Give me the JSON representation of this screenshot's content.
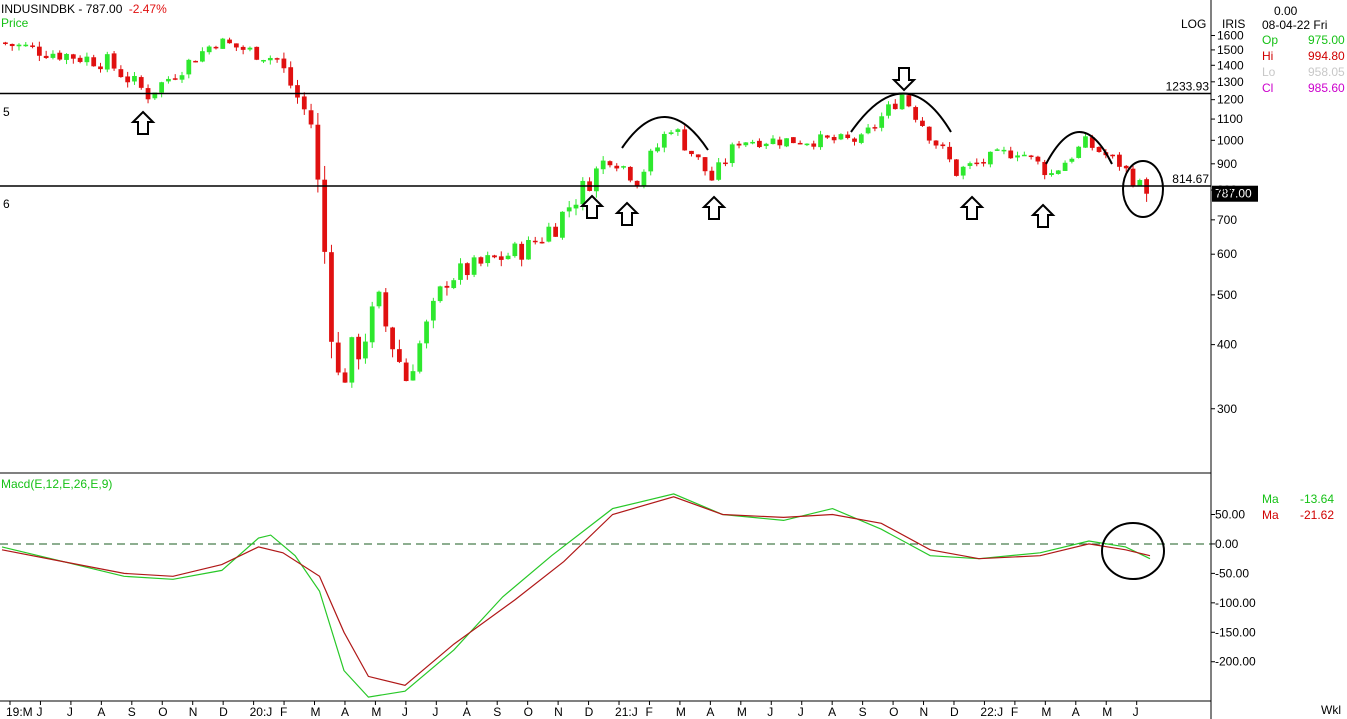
{
  "header": {
    "symbol": "INDUSINDBK -",
    "last_price": "787.00",
    "change": "-2.47%",
    "price_label": "Price",
    "log_label": "LOG",
    "source_label": "IRIS",
    "macd_label": "Macd(E,12,E,26,E,9)",
    "period_label": "Wkl",
    "row5": "5",
    "row6": "6"
  },
  "ohlc_panel": {
    "top_value": "0.00",
    "date": "08-04-22 Fri",
    "rows": [
      {
        "label": "Op",
        "value": "975.00",
        "color": "#16c116"
      },
      {
        "label": "Hi",
        "value": "994.80",
        "color": "#d00000"
      },
      {
        "label": "Lo",
        "value": "958.05",
        "color": "#c8c8c8"
      },
      {
        "label": "Cl",
        "value": "985.60",
        "color": "#cc00cc"
      }
    ]
  },
  "macd_panel": {
    "rows": [
      {
        "label": "Ma",
        "value": "-13.64",
        "color": "#16c116"
      },
      {
        "label": "Ma",
        "value": "-21.62",
        "color": "#d00000"
      }
    ]
  },
  "colors": {
    "up": "#2ee82e",
    "down": "#e01010",
    "macd": "#28c828",
    "signal": "#b01818"
  },
  "chart_data": [
    {
      "type": "candlestick",
      "title": "INDUSINDBK - 787.00 -2.47%",
      "scale": "log",
      "ylim": [
        230,
        1700
      ],
      "y_ticks": [
        1600,
        1500,
        1400,
        1300,
        1200,
        1100,
        1000,
        900,
        800,
        700,
        600,
        500,
        400,
        300
      ],
      "x_tick_labels": [
        "19:M",
        "J",
        "J",
        "A",
        "S",
        "O",
        "N",
        "D",
        "20:J",
        "F",
        "M",
        "A",
        "M",
        "J",
        "J",
        "A",
        "S",
        "O",
        "N",
        "D",
        "21:J",
        "F",
        "M",
        "A",
        "M",
        "J",
        "J",
        "A",
        "S",
        "O",
        "N",
        "D",
        "22:J",
        "F",
        "M",
        "A",
        "M",
        "J"
      ],
      "horizontal_lines": [
        {
          "value": 1233.93,
          "label": "1233.93"
        },
        {
          "value": 814.67,
          "label": "814.67"
        }
      ],
      "last_price_tag": "787.00",
      "annotations": [
        "up arrows at support",
        "down arrows at tops",
        "arcs marking tops",
        "circle around last candles"
      ],
      "segments": [
        {
          "from": "2019-05",
          "to": "2019-09",
          "start": 1550,
          "end": 1420,
          "weeks": 16,
          "vol": 0.04
        },
        {
          "from": "2019-09",
          "to": "2019-10",
          "start": 1420,
          "end": 1230,
          "weeks": 6,
          "vol": 0.04
        },
        {
          "from": "2019-10",
          "to": "2019-12",
          "start": 1230,
          "end": 1560,
          "weeks": 10,
          "vol": 0.035
        },
        {
          "from": "2019-12",
          "to": "2020-02",
          "start": 1560,
          "end": 1440,
          "weeks": 9,
          "vol": 0.035
        },
        {
          "from": "2020-02",
          "to": "2020-03",
          "start": 1440,
          "end": 1080,
          "weeks": 5,
          "vol": 0.05
        },
        {
          "from": "2020-03",
          "to": "2020-04",
          "start": 1080,
          "end": 340,
          "weeks": 4,
          "vol": 0.12
        },
        {
          "from": "2020-04",
          "to": "2020-05",
          "start": 340,
          "end": 470,
          "weeks": 6,
          "vol": 0.1
        },
        {
          "from": "2020-05",
          "to": "2020-06",
          "start": 470,
          "end": 345,
          "weeks": 4,
          "vol": 0.08
        },
        {
          "from": "2020-06",
          "to": "2020-07",
          "start": 345,
          "end": 540,
          "weeks": 6,
          "vol": 0.06
        },
        {
          "from": "2020-07",
          "to": "2020-10",
          "start": 540,
          "end": 620,
          "weeks": 12,
          "vol": 0.05
        },
        {
          "from": "2020-10",
          "to": "2020-11",
          "start": 620,
          "end": 690,
          "weeks": 4,
          "vol": 0.06
        },
        {
          "from": "2020-11",
          "to": "2021-01",
          "start": 690,
          "end": 940,
          "weeks": 8,
          "vol": 0.05
        },
        {
          "from": "2021-01",
          "to": "2021-02",
          "start": 940,
          "end": 840,
          "weeks": 4,
          "vol": 0.04
        },
        {
          "from": "2021-02",
          "to": "2021-03",
          "start": 840,
          "end": 1070,
          "weeks": 5,
          "vol": 0.04
        },
        {
          "from": "2021-03",
          "to": "2021-04",
          "start": 1070,
          "end": 840,
          "weeks": 6,
          "vol": 0.04
        },
        {
          "from": "2021-04",
          "to": "2021-05",
          "start": 840,
          "end": 1000,
          "weeks": 4,
          "vol": 0.035
        },
        {
          "from": "2021-05",
          "to": "2021-09",
          "start": 1000,
          "end": 1000,
          "weeks": 18,
          "vol": 0.03
        },
        {
          "from": "2021-09",
          "to": "2021-10",
          "start": 1000,
          "end": 1230,
          "weeks": 6,
          "vol": 0.035
        },
        {
          "from": "2021-10",
          "to": "2021-12",
          "start": 1230,
          "end": 870,
          "weeks": 8,
          "vol": 0.04
        },
        {
          "from": "2021-12",
          "to": "2022-02",
          "start": 870,
          "end": 960,
          "weeks": 9,
          "vol": 0.035
        },
        {
          "from": "2022-02",
          "to": "2022-03",
          "start": 960,
          "end": 860,
          "weeks": 5,
          "vol": 0.035
        },
        {
          "from": "2022-03",
          "to": "2022-04",
          "start": 860,
          "end": 990,
          "weeks": 5,
          "vol": 0.03
        },
        {
          "from": "2022-04",
          "to": "2022-05",
          "start": 990,
          "end": 900,
          "weeks": 5,
          "vol": 0.03
        },
        {
          "from": "2022-05",
          "to": "2022-06",
          "start": 900,
          "end": 790,
          "weeks": 4,
          "vol": 0.035
        }
      ]
    },
    {
      "type": "line",
      "title": "Macd(E,12,E,26,E,9)",
      "ylim": [
        -265,
        95
      ],
      "y_ticks": [
        50,
        0,
        -50,
        -100,
        -150,
        -200
      ],
      "y_tick_labels": [
        "50.00",
        "0.00",
        "-50.00",
        "-100.00",
        "-150.00",
        "-200.00"
      ],
      "zero_line": "dashed",
      "series": [
        {
          "name": "Macd",
          "color": "#28c828",
          "points": [
            [
              0,
              -5
            ],
            [
              0.05,
              -30
            ],
            [
              0.1,
              -55
            ],
            [
              0.14,
              -60
            ],
            [
              0.18,
              -45
            ],
            [
              0.21,
              10
            ],
            [
              0.22,
              15
            ],
            [
              0.24,
              -20
            ],
            [
              0.26,
              -80
            ],
            [
              0.28,
              -215
            ],
            [
              0.3,
              -260
            ],
            [
              0.33,
              -250
            ],
            [
              0.37,
              -180
            ],
            [
              0.41,
              -90
            ],
            [
              0.45,
              -20
            ],
            [
              0.5,
              60
            ],
            [
              0.55,
              85
            ],
            [
              0.59,
              50
            ],
            [
              0.64,
              40
            ],
            [
              0.68,
              60
            ],
            [
              0.72,
              25
            ],
            [
              0.76,
              -20
            ],
            [
              0.8,
              -25
            ],
            [
              0.85,
              -15
            ],
            [
              0.89,
              5
            ],
            [
              0.92,
              -5
            ],
            [
              0.94,
              -25
            ]
          ]
        },
        {
          "name": "Signal",
          "color": "#b01818",
          "points": [
            [
              0,
              -10
            ],
            [
              0.05,
              -30
            ],
            [
              0.1,
              -50
            ],
            [
              0.14,
              -55
            ],
            [
              0.18,
              -35
            ],
            [
              0.21,
              -5
            ],
            [
              0.23,
              -15
            ],
            [
              0.26,
              -55
            ],
            [
              0.28,
              -150
            ],
            [
              0.3,
              -225
            ],
            [
              0.33,
              -240
            ],
            [
              0.37,
              -170
            ],
            [
              0.42,
              -95
            ],
            [
              0.46,
              -30
            ],
            [
              0.5,
              50
            ],
            [
              0.55,
              80
            ],
            [
              0.59,
              50
            ],
            [
              0.64,
              45
            ],
            [
              0.68,
              50
            ],
            [
              0.72,
              35
            ],
            [
              0.76,
              -10
            ],
            [
              0.8,
              -25
            ],
            [
              0.85,
              -20
            ],
            [
              0.89,
              0
            ],
            [
              0.92,
              -10
            ],
            [
              0.94,
              -20
            ]
          ]
        }
      ]
    }
  ]
}
